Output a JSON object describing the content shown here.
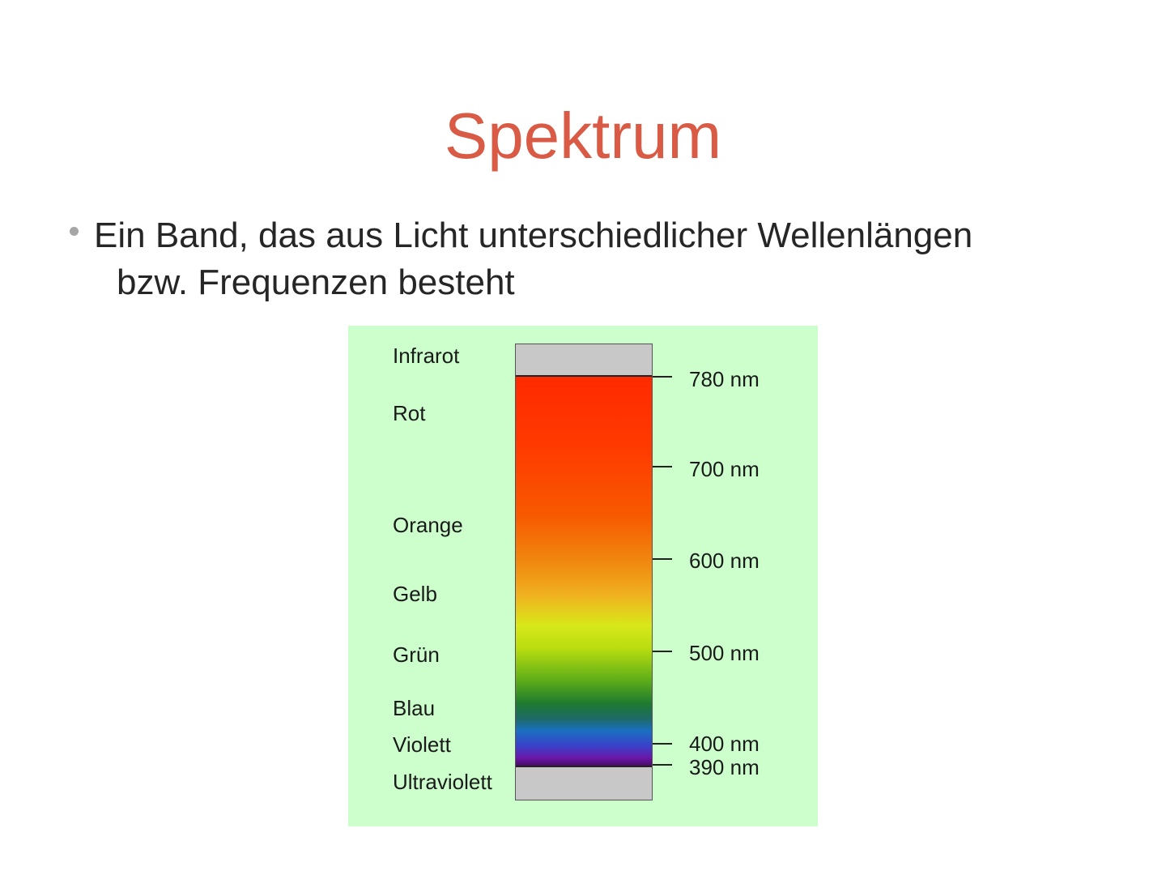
{
  "slide": {
    "title": "Spektrum",
    "bullet_line1": "Ein Band, das aus Licht unterschiedlicher Wellenlängen",
    "bullet_line2": "bzw. Frequenzen besteht"
  },
  "diagram": {
    "band_labels": {
      "infrared": "Infrarot",
      "red": "Rot",
      "orange": "Orange",
      "yellow": "Gelb",
      "green": "Grün",
      "blue": "Blau",
      "violet": "Violett",
      "ultraviolet": "Ultraviolett"
    },
    "wavelength_marks": {
      "w780": "780 nm",
      "w700": "700 nm",
      "w600": "600 nm",
      "w500": "500 nm",
      "w400": "400 nm",
      "w390": "390 nm"
    },
    "colors": {
      "background": "#ccffcc",
      "infrared_uv_band": "#c8c8c8",
      "title": "#d95a45"
    }
  }
}
